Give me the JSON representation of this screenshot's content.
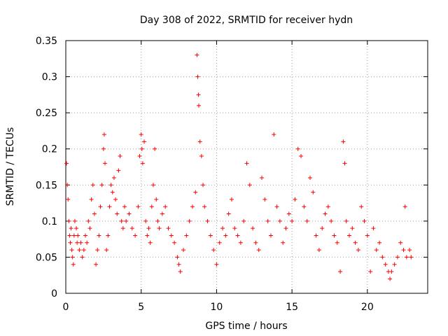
{
  "chart_data": {
    "type": "scatter",
    "title": "Day 308 of 2022, SRMTID for receiver hydn",
    "xlabel": "GPS time / hours",
    "ylabel": "SRMTID / TECUs",
    "xlim": [
      0,
      24
    ],
    "ylim": [
      0,
      0.35
    ],
    "xticks": [
      0,
      5,
      10,
      15,
      20
    ],
    "xtick_labels": [
      "0",
      "5",
      "10",
      "15",
      "20"
    ],
    "yticks": [
      0,
      0.05,
      0.1,
      0.15,
      0.2,
      0.25,
      0.3,
      0.35
    ],
    "ytick_labels": [
      "0",
      "0.05",
      "0.1",
      "0.15",
      "0.2",
      "0.25",
      "0.3",
      "0.35"
    ],
    "grid": true,
    "marker": "+",
    "color": "#ff0000",
    "series": [
      {
        "name": "SRMTID",
        "points": [
          [
            0.05,
            0.18
          ],
          [
            0.1,
            0.15
          ],
          [
            0.15,
            0.13
          ],
          [
            0.2,
            0.1
          ],
          [
            0.25,
            0.08
          ],
          [
            0.3,
            0.07
          ],
          [
            0.35,
            0.09
          ],
          [
            0.4,
            0.06
          ],
          [
            0.45,
            0.05
          ],
          [
            0.5,
            0.04
          ],
          [
            0.55,
            0.08
          ],
          [
            0.6,
            0.1
          ],
          [
            0.7,
            0.09
          ],
          [
            0.75,
            0.07
          ],
          [
            0.8,
            0.08
          ],
          [
            0.9,
            0.06
          ],
          [
            1.0,
            0.07
          ],
          [
            1.1,
            0.05
          ],
          [
            1.2,
            0.06
          ],
          [
            1.3,
            0.08
          ],
          [
            1.4,
            0.07
          ],
          [
            1.5,
            0.1
          ],
          [
            1.6,
            0.09
          ],
          [
            1.7,
            0.13
          ],
          [
            1.8,
            0.15
          ],
          [
            1.9,
            0.11
          ],
          [
            2.0,
            0.04
          ],
          [
            2.1,
            0.06
          ],
          [
            2.2,
            0.08
          ],
          [
            2.3,
            0.12
          ],
          [
            2.4,
            0.15
          ],
          [
            2.5,
            0.2
          ],
          [
            2.55,
            0.22
          ],
          [
            2.6,
            0.18
          ],
          [
            2.7,
            0.06
          ],
          [
            2.8,
            0.08
          ],
          [
            2.9,
            0.12
          ],
          [
            3.0,
            0.15
          ],
          [
            3.1,
            0.14
          ],
          [
            3.2,
            0.16
          ],
          [
            3.3,
            0.13
          ],
          [
            3.4,
            0.11
          ],
          [
            3.5,
            0.17
          ],
          [
            3.6,
            0.19
          ],
          [
            3.7,
            0.1
          ],
          [
            3.8,
            0.09
          ],
          [
            3.9,
            0.12
          ],
          [
            4.0,
            0.1
          ],
          [
            4.2,
            0.11
          ],
          [
            4.4,
            0.09
          ],
          [
            4.6,
            0.08
          ],
          [
            4.8,
            0.12
          ],
          [
            4.9,
            0.19
          ],
          [
            5.0,
            0.22
          ],
          [
            5.05,
            0.2
          ],
          [
            5.1,
            0.18
          ],
          [
            5.2,
            0.21
          ],
          [
            5.3,
            0.1
          ],
          [
            5.4,
            0.08
          ],
          [
            5.5,
            0.09
          ],
          [
            5.6,
            0.07
          ],
          [
            5.7,
            0.12
          ],
          [
            5.8,
            0.15
          ],
          [
            5.9,
            0.2
          ],
          [
            6.0,
            0.13
          ],
          [
            6.1,
            0.1
          ],
          [
            6.2,
            0.09
          ],
          [
            6.4,
            0.11
          ],
          [
            6.6,
            0.12
          ],
          [
            6.8,
            0.09
          ],
          [
            7.0,
            0.08
          ],
          [
            7.2,
            0.07
          ],
          [
            7.4,
            0.05
          ],
          [
            7.5,
            0.04
          ],
          [
            7.6,
            0.03
          ],
          [
            7.8,
            0.06
          ],
          [
            8.0,
            0.08
          ],
          [
            8.2,
            0.1
          ],
          [
            8.4,
            0.12
          ],
          [
            8.6,
            0.14
          ],
          [
            8.7,
            0.33
          ],
          [
            8.75,
            0.3
          ],
          [
            8.8,
            0.275
          ],
          [
            8.82,
            0.26
          ],
          [
            8.9,
            0.21
          ],
          [
            9.0,
            0.19
          ],
          [
            9.1,
            0.15
          ],
          [
            9.2,
            0.12
          ],
          [
            9.4,
            0.1
          ],
          [
            9.6,
            0.08
          ],
          [
            9.8,
            0.06
          ],
          [
            10.0,
            0.04
          ],
          [
            10.2,
            0.07
          ],
          [
            10.4,
            0.09
          ],
          [
            10.6,
            0.08
          ],
          [
            10.8,
            0.11
          ],
          [
            11.0,
            0.13
          ],
          [
            11.2,
            0.09
          ],
          [
            11.4,
            0.08
          ],
          [
            11.6,
            0.07
          ],
          [
            11.8,
            0.1
          ],
          [
            12.0,
            0.18
          ],
          [
            12.2,
            0.15
          ],
          [
            12.4,
            0.09
          ],
          [
            12.6,
            0.07
          ],
          [
            12.8,
            0.06
          ],
          [
            13.0,
            0.16
          ],
          [
            13.2,
            0.13
          ],
          [
            13.4,
            0.1
          ],
          [
            13.6,
            0.08
          ],
          [
            13.8,
            0.22
          ],
          [
            14.0,
            0.12
          ],
          [
            14.2,
            0.1
          ],
          [
            14.4,
            0.07
          ],
          [
            14.6,
            0.09
          ],
          [
            14.8,
            0.11
          ],
          [
            15.0,
            0.1
          ],
          [
            15.2,
            0.13
          ],
          [
            15.4,
            0.2
          ],
          [
            15.6,
            0.19
          ],
          [
            15.8,
            0.12
          ],
          [
            16.0,
            0.1
          ],
          [
            16.2,
            0.16
          ],
          [
            16.4,
            0.14
          ],
          [
            16.6,
            0.08
          ],
          [
            16.8,
            0.06
          ],
          [
            17.0,
            0.09
          ],
          [
            17.2,
            0.11
          ],
          [
            17.4,
            0.12
          ],
          [
            17.6,
            0.1
          ],
          [
            17.8,
            0.08
          ],
          [
            18.0,
            0.07
          ],
          [
            18.2,
            0.03
          ],
          [
            18.4,
            0.21
          ],
          [
            18.5,
            0.18
          ],
          [
            18.6,
            0.1
          ],
          [
            18.8,
            0.08
          ],
          [
            19.0,
            0.09
          ],
          [
            19.2,
            0.07
          ],
          [
            19.4,
            0.06
          ],
          [
            19.6,
            0.12
          ],
          [
            19.8,
            0.1
          ],
          [
            20.0,
            0.08
          ],
          [
            20.2,
            0.03
          ],
          [
            20.4,
            0.09
          ],
          [
            20.6,
            0.06
          ],
          [
            20.8,
            0.07
          ],
          [
            21.0,
            0.05
          ],
          [
            21.2,
            0.04
          ],
          [
            21.4,
            0.03
          ],
          [
            21.5,
            0.02
          ],
          [
            21.6,
            0.03
          ],
          [
            21.8,
            0.04
          ],
          [
            22.0,
            0.05
          ],
          [
            22.2,
            0.07
          ],
          [
            22.4,
            0.06
          ],
          [
            22.5,
            0.12
          ],
          [
            22.6,
            0.05
          ],
          [
            22.8,
            0.06
          ],
          [
            22.9,
            0.05
          ]
        ]
      }
    ]
  }
}
